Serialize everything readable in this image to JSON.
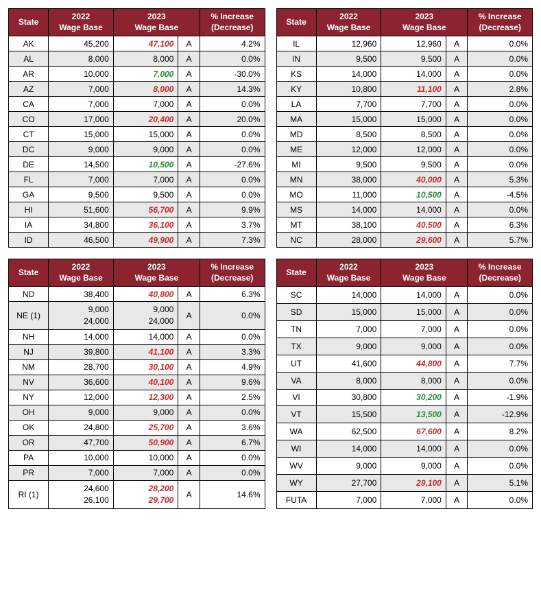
{
  "colors": {
    "header_bg": "#8b2331",
    "header_text": "#ffffff",
    "row_even_bg": "#e8e8e8",
    "row_odd_bg": "#ffffff",
    "increase_text": "#c92a2a",
    "decrease_text": "#2b8a3e",
    "border": "#000000"
  },
  "headers": {
    "state": "State",
    "wage2022_l1": "2022",
    "wage2022_l2": "Wage Base",
    "wage2023_l1": "2023",
    "wage2023_l2": "Wage Base",
    "pct_l1": "% Increase",
    "pct_l2": "(Decrease)"
  },
  "tables": [
    {
      "rows": [
        {
          "state": "AK",
          "w2022": "45,200",
          "w2023": "47,100",
          "w2023_change": "up",
          "mark": "A",
          "pct": "4.2%"
        },
        {
          "state": "AL",
          "w2022": "8,000",
          "w2023": "8,000",
          "w2023_change": null,
          "mark": "A",
          "pct": "0.0%"
        },
        {
          "state": "AR",
          "w2022": "10,000",
          "w2023": "7,000",
          "w2023_change": "down",
          "mark": "A",
          "pct": "-30.0%"
        },
        {
          "state": "AZ",
          "w2022": "7,000",
          "w2023": "8,000",
          "w2023_change": "up",
          "mark": "A",
          "pct": "14.3%"
        },
        {
          "state": "CA",
          "w2022": "7,000",
          "w2023": "7,000",
          "w2023_change": null,
          "mark": "A",
          "pct": "0.0%"
        },
        {
          "state": "CO",
          "w2022": "17,000",
          "w2023": "20,400",
          "w2023_change": "up",
          "mark": "A",
          "pct": "20.0%"
        },
        {
          "state": "CT",
          "w2022": "15,000",
          "w2023": "15,000",
          "w2023_change": null,
          "mark": "A",
          "pct": "0.0%"
        },
        {
          "state": "DC",
          "w2022": "9,000",
          "w2023": "9,000",
          "w2023_change": null,
          "mark": "A",
          "pct": "0.0%"
        },
        {
          "state": "DE",
          "w2022": "14,500",
          "w2023": "10,500",
          "w2023_change": "down",
          "mark": "A",
          "pct": "-27.6%"
        },
        {
          "state": "FL",
          "w2022": "7,000",
          "w2023": "7,000",
          "w2023_change": null,
          "mark": "A",
          "pct": "0.0%"
        },
        {
          "state": "GA",
          "w2022": "9,500",
          "w2023": "9,500",
          "w2023_change": null,
          "mark": "A",
          "pct": "0.0%"
        },
        {
          "state": "HI",
          "w2022": "51,600",
          "w2023": "56,700",
          "w2023_change": "up",
          "mark": "A",
          "pct": "9.9%"
        },
        {
          "state": "IA",
          "w2022": "34,800",
          "w2023": "36,100",
          "w2023_change": "up",
          "mark": "A",
          "pct": "3.7%"
        },
        {
          "state": "ID",
          "w2022": "46,500",
          "w2023": "49,900",
          "w2023_change": "up",
          "mark": "A",
          "pct": "7.3%"
        }
      ]
    },
    {
      "rows": [
        {
          "state": "IL",
          "w2022": "12,960",
          "w2023": "12,960",
          "w2023_change": null,
          "mark": "A",
          "pct": "0.0%"
        },
        {
          "state": "IN",
          "w2022": "9,500",
          "w2023": "9,500",
          "w2023_change": null,
          "mark": "A",
          "pct": "0.0%"
        },
        {
          "state": "KS",
          "w2022": "14,000",
          "w2023": "14,000",
          "w2023_change": null,
          "mark": "A",
          "pct": "0.0%"
        },
        {
          "state": "KY",
          "w2022": "10,800",
          "w2023": "11,100",
          "w2023_change": "up",
          "mark": "A",
          "pct": "2.8%"
        },
        {
          "state": "LA",
          "w2022": "7,700",
          "w2023": "7,700",
          "w2023_change": null,
          "mark": "A",
          "pct": "0.0%"
        },
        {
          "state": "MA",
          "w2022": "15,000",
          "w2023": "15,000",
          "w2023_change": null,
          "mark": "A",
          "pct": "0.0%"
        },
        {
          "state": "MD",
          "w2022": "8,500",
          "w2023": "8,500",
          "w2023_change": null,
          "mark": "A",
          "pct": "0.0%"
        },
        {
          "state": "ME",
          "w2022": "12,000",
          "w2023": "12,000",
          "w2023_change": null,
          "mark": "A",
          "pct": "0.0%"
        },
        {
          "state": "MI",
          "w2022": "9,500",
          "w2023": "9,500",
          "w2023_change": null,
          "mark": "A",
          "pct": "0.0%"
        },
        {
          "state": "MN",
          "w2022": "38,000",
          "w2023": "40,000",
          "w2023_change": "up",
          "mark": "A",
          "pct": "5.3%"
        },
        {
          "state": "MO",
          "w2022": "11,000",
          "w2023": "10,500",
          "w2023_change": "down",
          "mark": "A",
          "pct": "-4.5%"
        },
        {
          "state": "MS",
          "w2022": "14,000",
          "w2023": "14,000",
          "w2023_change": null,
          "mark": "A",
          "pct": "0.0%"
        },
        {
          "state": "MT",
          "w2022": "38,100",
          "w2023": "40,500",
          "w2023_change": "up",
          "mark": "A",
          "pct": "6.3%"
        },
        {
          "state": "NC",
          "w2022": "28,000",
          "w2023": "29,600",
          "w2023_change": "up",
          "mark": "A",
          "pct": "5.7%"
        }
      ]
    },
    {
      "rows": [
        {
          "state": "ND",
          "w2022": "38,400",
          "w2023": "40,800",
          "w2023_change": "up",
          "mark": "A",
          "pct": "6.3%"
        },
        {
          "state": "NE (1)",
          "multi": true,
          "w2022": [
            "9,000",
            "24,000"
          ],
          "w2023": [
            "9,000",
            "24,000"
          ],
          "w2023_change": [
            null,
            null
          ],
          "mark": "A",
          "pct": "0.0%"
        },
        {
          "state": "NH",
          "w2022": "14,000",
          "w2023": "14,000",
          "w2023_change": null,
          "mark": "A",
          "pct": "0.0%"
        },
        {
          "state": "NJ",
          "w2022": "39,800",
          "w2023": "41,100",
          "w2023_change": "up",
          "mark": "A",
          "pct": "3.3%"
        },
        {
          "state": "NM",
          "w2022": "28,700",
          "w2023": "30,100",
          "w2023_change": "up",
          "mark": "A",
          "pct": "4.9%"
        },
        {
          "state": "NV",
          "w2022": "36,600",
          "w2023": "40,100",
          "w2023_change": "up",
          "mark": "A",
          "pct": "9.6%"
        },
        {
          "state": "NY",
          "w2022": "12,000",
          "w2023": "12,300",
          "w2023_change": "up",
          "mark": "A",
          "pct": "2.5%"
        },
        {
          "state": "OH",
          "w2022": "9,000",
          "w2023": "9,000",
          "w2023_change": null,
          "mark": "A",
          "pct": "0.0%"
        },
        {
          "state": "OK",
          "w2022": "24,800",
          "w2023": "25,700",
          "w2023_change": "up",
          "mark": "A",
          "pct": "3.6%"
        },
        {
          "state": "OR",
          "w2022": "47,700",
          "w2023": "50,900",
          "w2023_change": "up",
          "mark": "A",
          "pct": "6.7%"
        },
        {
          "state": "PA",
          "w2022": "10,000",
          "w2023": "10,000",
          "w2023_change": null,
          "mark": "A",
          "pct": "0.0%"
        },
        {
          "state": "PR",
          "w2022": "7,000",
          "w2023": "7,000",
          "w2023_change": null,
          "mark": "A",
          "pct": "0.0%"
        },
        {
          "state": "RI (1)",
          "multi": true,
          "w2022": [
            "24,600",
            "26,100"
          ],
          "w2023": [
            "28,200",
            "29,700"
          ],
          "w2023_change": [
            "up",
            "up"
          ],
          "mark": "A",
          "pct": "14.6%"
        }
      ]
    },
    {
      "rows": [
        {
          "state": "SC",
          "w2022": "14,000",
          "w2023": "14,000",
          "w2023_change": null,
          "mark": "A",
          "pct": "0.0%"
        },
        {
          "state": "SD",
          "w2022": "15,000",
          "w2023": "15,000",
          "w2023_change": null,
          "mark": "A",
          "pct": "0.0%"
        },
        {
          "state": "TN",
          "w2022": "7,000",
          "w2023": "7,000",
          "w2023_change": null,
          "mark": "A",
          "pct": "0.0%"
        },
        {
          "state": "TX",
          "w2022": "9,000",
          "w2023": "9,000",
          "w2023_change": null,
          "mark": "A",
          "pct": "0.0%"
        },
        {
          "state": "UT",
          "w2022": "41,600",
          "w2023": "44,800",
          "w2023_change": "up",
          "mark": "A",
          "pct": "7.7%"
        },
        {
          "state": "VA",
          "w2022": "8,000",
          "w2023": "8,000",
          "w2023_change": null,
          "mark": "A",
          "pct": "0.0%"
        },
        {
          "state": "VI",
          "w2022": "30,800",
          "w2023": "30,200",
          "w2023_change": "down",
          "mark": "A",
          "pct": "-1.9%"
        },
        {
          "state": "VT",
          "w2022": "15,500",
          "w2023": "13,500",
          "w2023_change": "down",
          "mark": "A",
          "pct": "-12.9%"
        },
        {
          "state": "WA",
          "w2022": "62,500",
          "w2023": "67,600",
          "w2023_change": "up",
          "mark": "A",
          "pct": "8.2%"
        },
        {
          "state": "WI",
          "w2022": "14,000",
          "w2023": "14,000",
          "w2023_change": null,
          "mark": "A",
          "pct": "0.0%"
        },
        {
          "state": "WV",
          "w2022": "9,000",
          "w2023": "9,000",
          "w2023_change": null,
          "mark": "A",
          "pct": "0.0%"
        },
        {
          "state": "WY",
          "w2022": "27,700",
          "w2023": "29,100",
          "w2023_change": "up",
          "mark": "A",
          "pct": "5.1%"
        },
        {
          "state": "FUTA",
          "w2022": "7,000",
          "w2023": "7,000",
          "w2023_change": null,
          "mark": "A",
          "pct": "0.0%"
        }
      ]
    }
  ]
}
